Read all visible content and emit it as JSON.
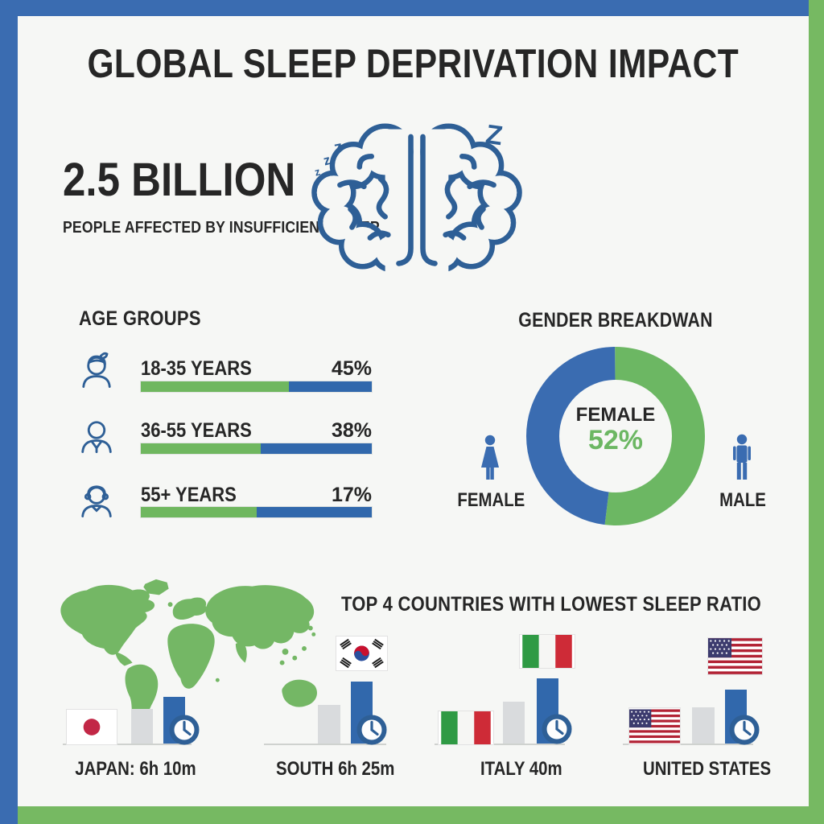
{
  "title": "GLOBAL SLEEP DEPRIVATION IMPACT",
  "stat": {
    "value": "2.5 BILLION",
    "label": "PEOPLE AFFECTED BY INSUFFICIENT SLEEP",
    "z_letters": {
      "l1": "z",
      "l2": "z",
      "l3": "z",
      "r1": "z",
      "r2": "Z"
    }
  },
  "age_groups": {
    "heading": "AGE GROUPS",
    "rows": [
      {
        "label": "18-35 YEARS",
        "value": "45%",
        "green_pct": 64
      },
      {
        "label": "36-55 YEARS",
        "value": "38%",
        "green_pct": 52
      },
      {
        "label": "55+ YEARS",
        "value": "17%",
        "green_pct": 50
      }
    ]
  },
  "gender": {
    "heading": "GENDER BREAKDWAN",
    "center_label": "FEMALE",
    "center_value": "52%",
    "female_pct": 52,
    "left_label": "FEMALE",
    "right_label": "MALE"
  },
  "countries": {
    "heading": "TOP 4 COUNTRIES WITH LOWEST SLEEP RATIO",
    "items": [
      {
        "name": "JAPAN: 6h 10m",
        "flag": "japan"
      },
      {
        "name": "SOUTH 6h 25m",
        "flag": "south-korea"
      },
      {
        "name": "ITALY 40m",
        "flag": "italy"
      },
      {
        "name": "UNITED STATES",
        "flag": "united-states"
      }
    ]
  },
  "colors": {
    "frame_blue": "#3a6cb1",
    "frame_green": "#76b962",
    "bar_green": "#6fb75f",
    "bar_blue": "#3168ac",
    "donut_green": "#6cb763",
    "donut_blue": "#3a6cb1",
    "icon_blue": "#2e5f96",
    "gray_bar": "#d9dbdd",
    "text_dark": "#262626",
    "japan_red": "#c22746",
    "italy_green": "#2f9a44",
    "italy_red": "#ce2b37",
    "us_red": "#b22234",
    "us_blue": "#3c3b6e",
    "korea_red": "#c8102e",
    "korea_blue": "#2a4f9e"
  },
  "chart_data": [
    {
      "type": "bar",
      "title": "AGE GROUPS",
      "categories": [
        "18-35 YEARS",
        "36-55 YEARS",
        "55+ YEARS"
      ],
      "values": [
        45,
        38,
        17
      ],
      "unit": "%",
      "notes": "each row shows a two-tone (green/blue) horizontal bar with the percentage printed at right"
    },
    {
      "type": "pie",
      "title": "GENDER BREAKDWAN",
      "labels": [
        "FEMALE",
        "MALE"
      ],
      "values": [
        52,
        48
      ],
      "unit": "%",
      "center_text": [
        "FEMALE",
        "52%"
      ],
      "colors": [
        "#6cb763",
        "#3a6cb1"
      ],
      "legend_position": "sides (female pictogram left, male pictogram right)"
    },
    {
      "type": "bar",
      "title": "TOP 4 COUNTRIES WITH LOWEST SLEEP RATIO",
      "categories": [
        "JAPAN: 6h 10m",
        "SOUTH 6h 25m",
        "ITALY 40m",
        "UNITED STATES"
      ],
      "values_shown_as_text": [
        "6h 10m",
        "6h 25m",
        "40m",
        ""
      ],
      "notes": "each country group: flag, short gray bar, taller blue bar with clock icon"
    }
  ]
}
